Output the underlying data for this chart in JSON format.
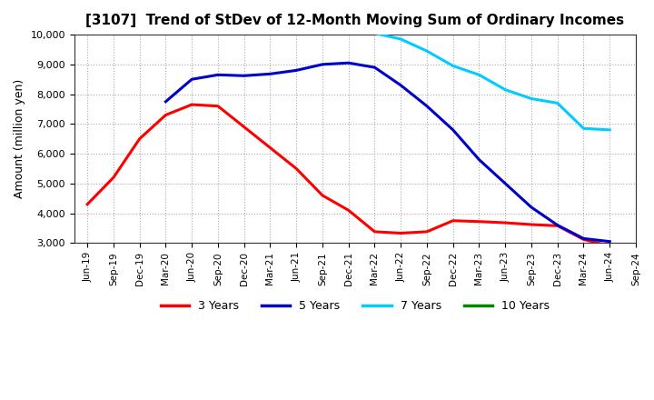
{
  "title": "[3107]  Trend of StDev of 12-Month Moving Sum of Ordinary Incomes",
  "ylabel": "Amount (million yen)",
  "background_color": "#ffffff",
  "grid_color": "#aaaaaa",
  "ylim": [
    3000,
    10000
  ],
  "yticks": [
    3000,
    4000,
    5000,
    6000,
    7000,
    8000,
    9000,
    10000
  ],
  "x_labels": [
    "Jun-19",
    "Sep-19",
    "Dec-19",
    "Mar-20",
    "Jun-20",
    "Sep-20",
    "Dec-20",
    "Mar-21",
    "Jun-21",
    "Sep-21",
    "Dec-21",
    "Mar-22",
    "Jun-22",
    "Sep-22",
    "Dec-22",
    "Mar-23",
    "Jun-23",
    "Sep-23",
    "Dec-23",
    "Mar-24",
    "Jun-24",
    "Sep-24"
  ],
  "series": [
    {
      "name": "3 Years",
      "color": "#ff0000",
      "linewidth": 2.2,
      "data_x": [
        0,
        1,
        2,
        3,
        4,
        5,
        6,
        7,
        8,
        9,
        10,
        11,
        12,
        13,
        14,
        15,
        16,
        17,
        18,
        19,
        20
      ],
      "data_y": [
        4300,
        5200,
        6500,
        7300,
        7650,
        7600,
        6900,
        6200,
        5500,
        4600,
        4100,
        3380,
        3330,
        3380,
        3750,
        3720,
        3680,
        3620,
        3580,
        3120,
        2900
      ]
    },
    {
      "name": "5 Years",
      "color": "#0000cc",
      "linewidth": 2.2,
      "data_x": [
        3,
        4,
        5,
        6,
        7,
        8,
        9,
        10,
        11,
        12,
        13,
        14,
        15,
        16,
        17,
        18,
        19,
        20
      ],
      "data_y": [
        7750,
        8500,
        8650,
        8620,
        8680,
        8800,
        9000,
        9050,
        8900,
        8300,
        7600,
        6800,
        5800,
        5000,
        4200,
        3600,
        3150,
        3050
      ]
    },
    {
      "name": "7 Years",
      "color": "#00ccff",
      "linewidth": 2.2,
      "data_x": [
        11,
        12,
        13,
        14,
        15,
        16,
        17,
        18,
        19,
        20
      ],
      "data_y": [
        10050,
        9850,
        9450,
        8950,
        8650,
        8150,
        7850,
        7700,
        6850,
        6800
      ]
    },
    {
      "name": "10 Years",
      "color": "#008800",
      "linewidth": 2.2,
      "data_x": [],
      "data_y": []
    }
  ],
  "legend_entries": [
    "3 Years",
    "5 Years",
    "7 Years",
    "10 Years"
  ],
  "legend_colors": [
    "#ff0000",
    "#0000cc",
    "#00ccff",
    "#008800"
  ]
}
